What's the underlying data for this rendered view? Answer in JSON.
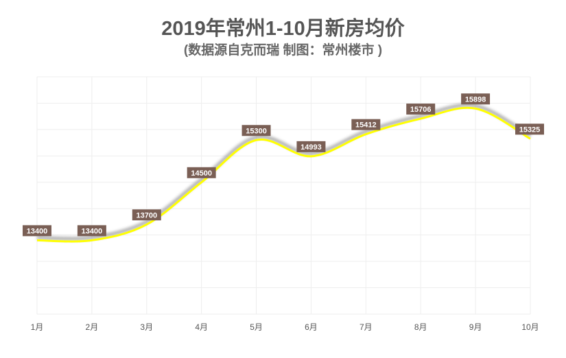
{
  "chart_data": {
    "type": "line",
    "title": "2019年常州1-10月新房均价",
    "subtitle": "(数据源自克而瑞  制图：常州楼市 )",
    "categories": [
      "1月",
      "2月",
      "3月",
      "4月",
      "5月",
      "6月",
      "7月",
      "8月",
      "9月",
      "10月"
    ],
    "series": [
      {
        "name": "新房均价",
        "values": [
          13400,
          13400,
          13700,
          14500,
          15300,
          14993,
          15412,
          15706,
          15898,
          15325
        ]
      }
    ],
    "xlabel": "",
    "ylabel": "",
    "ylim": [
      12000,
      16500
    ],
    "y_grid_step": 500,
    "grid": true,
    "smooth": true,
    "colors": {
      "line": "#ffff00",
      "shadow": "#999999",
      "label_bg": "#7a5f55",
      "label_text": "#ffffff",
      "grid": "#eeeeee"
    }
  }
}
